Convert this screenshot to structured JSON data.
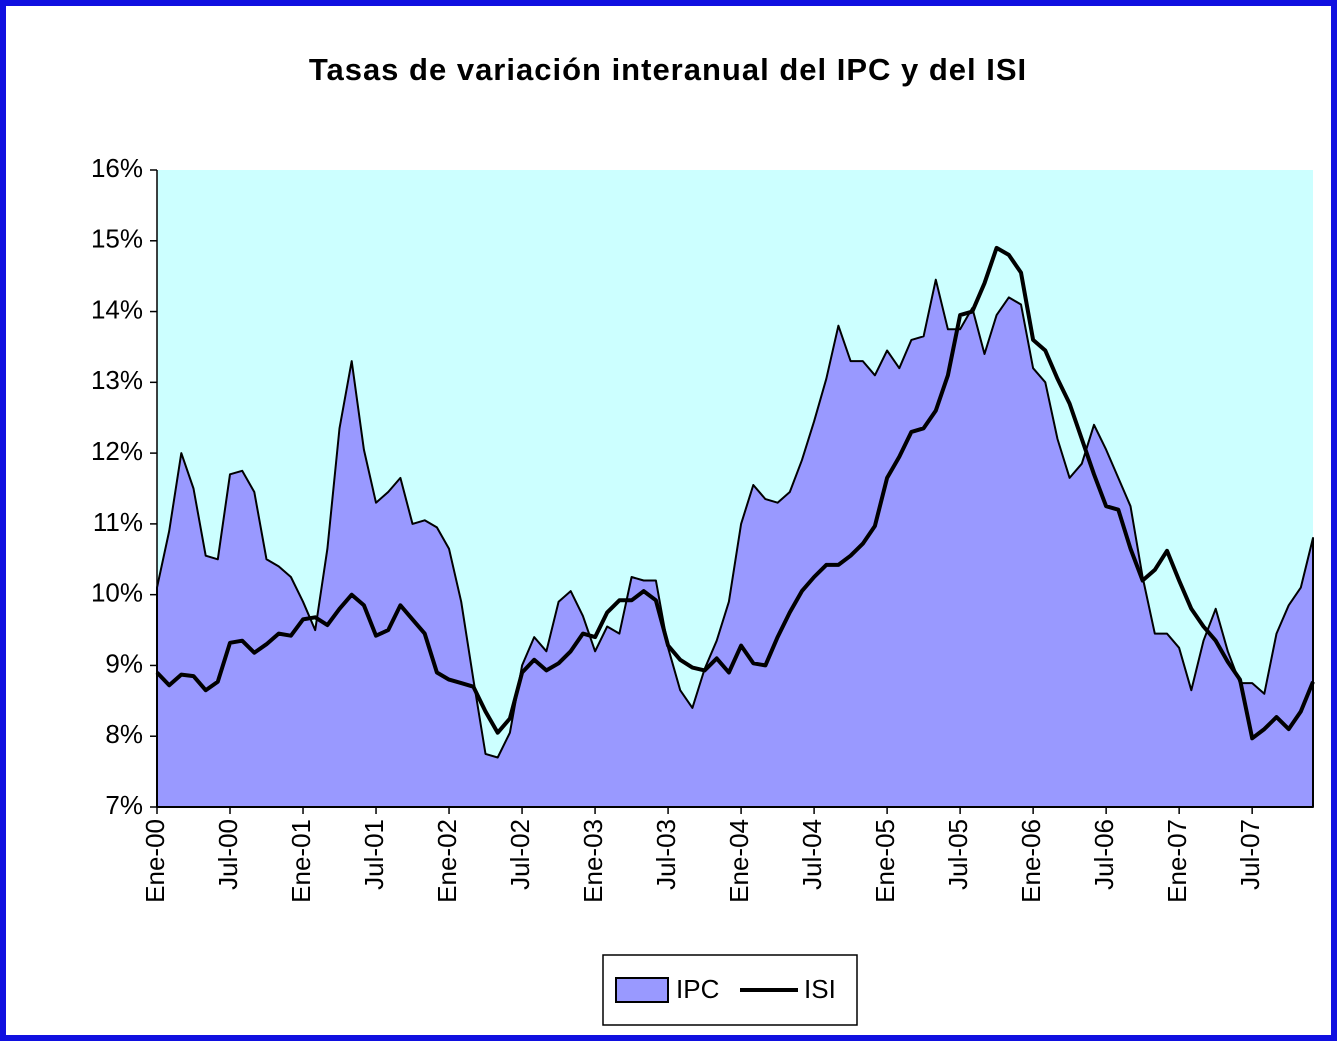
{
  "chart_data": {
    "type": "area-line",
    "title": "Tasas de variación interanual del IPC y del ISI",
    "categories": [
      "Ene-00",
      null,
      null,
      null,
      null,
      null,
      "Jul-00",
      null,
      null,
      null,
      null,
      null,
      "Ene-01",
      null,
      null,
      null,
      null,
      null,
      "Jul-01",
      null,
      null,
      null,
      null,
      null,
      "Ene-02",
      null,
      null,
      null,
      null,
      null,
      "Jul-02",
      null,
      null,
      null,
      null,
      null,
      "Ene-03",
      null,
      null,
      null,
      null,
      null,
      "Jul-03",
      null,
      null,
      null,
      null,
      null,
      "Ene-04",
      null,
      null,
      null,
      null,
      null,
      "Jul-04",
      null,
      null,
      null,
      null,
      null,
      "Ene-05",
      null,
      null,
      null,
      null,
      null,
      "Jul-05",
      null,
      null,
      null,
      null,
      null,
      "Ene-06",
      null,
      null,
      null,
      null,
      null,
      "Jul-06",
      null,
      null,
      null,
      null,
      null,
      "Ene-07",
      null,
      null,
      null,
      null,
      null,
      "Jul-07",
      null,
      null,
      null,
      null,
      null
    ],
    "series": [
      {
        "name": "IPC",
        "color": "#9999ff",
        "kind": "area",
        "values": [
          10.1,
          10.9,
          12.0,
          11.5,
          10.55,
          10.5,
          11.7,
          11.75,
          11.45,
          10.5,
          10.4,
          10.25,
          9.9,
          9.5,
          10.65,
          12.35,
          13.3,
          12.05,
          11.3,
          11.45,
          11.65,
          11.0,
          11.05,
          10.95,
          10.65,
          9.9,
          8.8,
          7.75,
          7.7,
          8.05,
          9.0,
          9.4,
          9.2,
          9.9,
          10.05,
          9.7,
          9.2,
          9.55,
          9.45,
          10.25,
          10.2,
          10.2,
          9.25,
          8.65,
          8.4,
          8.95,
          9.35,
          9.9,
          11.0,
          11.55,
          11.35,
          11.3,
          11.45,
          11.9,
          12.45,
          13.05,
          13.8,
          13.3,
          13.3,
          13.1,
          13.45,
          13.2,
          13.6,
          13.65,
          14.45,
          13.75,
          13.75,
          14.05,
          13.4,
          13.95,
          14.2,
          14.1,
          13.2,
          13.0,
          12.2,
          11.65,
          11.85,
          12.4,
          12.05,
          11.65,
          11.25,
          10.25,
          9.45,
          9.45,
          9.25,
          8.65,
          9.35,
          9.8,
          9.2,
          8.75,
          8.75,
          8.6,
          9.45,
          9.85,
          10.1,
          10.8
        ]
      },
      {
        "name": "ISI",
        "color": "#000000",
        "kind": "line",
        "values": [
          8.9,
          8.72,
          8.87,
          8.85,
          8.65,
          8.77,
          9.32,
          9.35,
          9.18,
          9.3,
          9.45,
          9.42,
          9.65,
          9.68,
          9.57,
          9.8,
          10.0,
          9.85,
          9.42,
          9.5,
          9.85,
          9.65,
          9.45,
          8.9,
          8.8,
          8.75,
          8.7,
          8.35,
          8.05,
          8.25,
          8.9,
          9.08,
          8.93,
          9.03,
          9.2,
          9.45,
          9.4,
          9.75,
          9.92,
          9.92,
          10.05,
          9.92,
          9.28,
          9.08,
          8.97,
          8.93,
          9.1,
          8.9,
          9.28,
          9.03,
          9.0,
          9.4,
          9.75,
          10.05,
          10.25,
          10.42,
          10.42,
          10.55,
          10.72,
          10.97,
          11.65,
          11.95,
          12.3,
          12.35,
          12.6,
          13.1,
          13.95,
          14.0,
          14.4,
          14.9,
          14.8,
          14.55,
          13.6,
          13.45,
          13.05,
          12.7,
          12.2,
          11.7,
          11.25,
          11.2,
          10.65,
          10.2,
          10.35,
          10.62,
          10.2,
          9.8,
          9.55,
          9.35,
          9.05,
          8.8,
          7.97,
          8.1,
          8.27,
          8.1,
          8.35,
          8.77
        ]
      }
    ],
    "ylim": [
      7,
      16
    ],
    "yticks": [
      {
        "value": 7,
        "label": "7%"
      },
      {
        "value": 8,
        "label": "8%"
      },
      {
        "value": 9,
        "label": "9%"
      },
      {
        "value": 10,
        "label": "10%"
      },
      {
        "value": 11,
        "label": "11%"
      },
      {
        "value": 12,
        "label": "12%"
      },
      {
        "value": 13,
        "label": "13%"
      },
      {
        "value": 14,
        "label": "14%"
      },
      {
        "value": 15,
        "label": "15%"
      },
      {
        "value": 16,
        "label": "16%"
      }
    ],
    "plot_background": "#ccffff",
    "legend": "bottom"
  }
}
